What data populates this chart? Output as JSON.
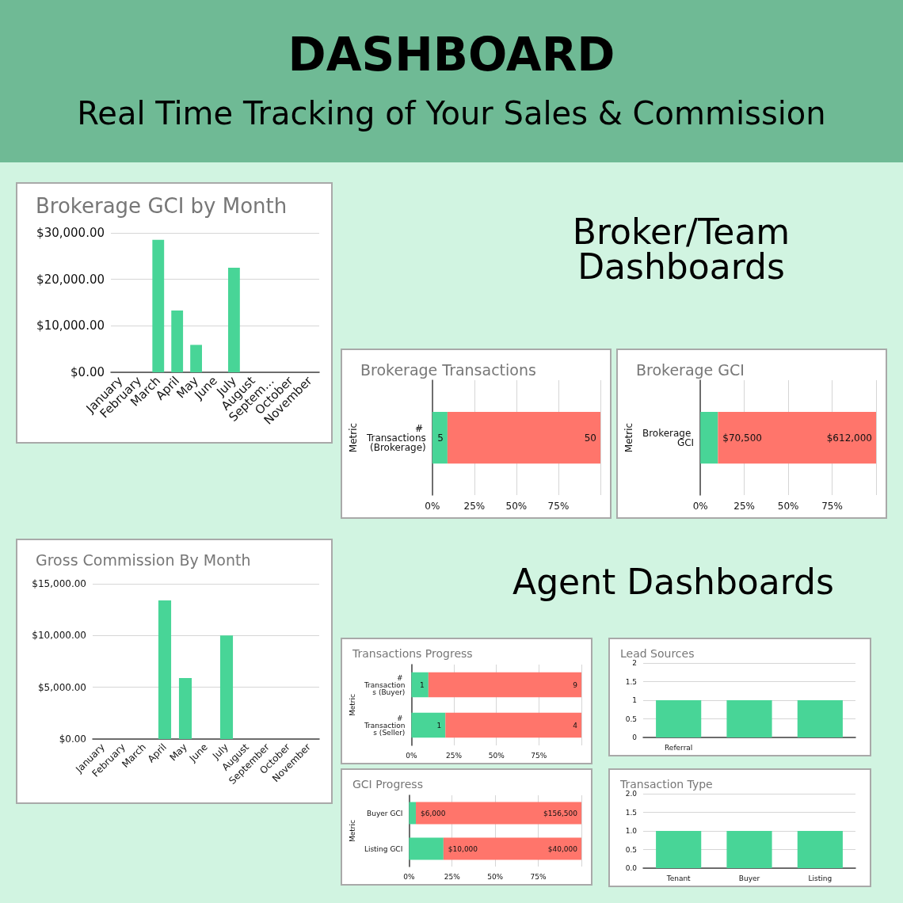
{
  "chart_data": [
    {
      "type": "other",
      "title": "DASHBOARD",
      "subtitle": "Real Time Tracking of Your Sales & Commission"
    },
    {
      "type": "other",
      "title": "Broker/Team Dashboards"
    },
    {
      "type": "bar",
      "title": "Brokerage GCI by Month",
      "categories": [
        "January",
        "February",
        "March",
        "April",
        "May",
        "June",
        "July",
        "August",
        "Septem…",
        "October",
        "November"
      ],
      "values": [
        0,
        0,
        28500,
        13300,
        5900,
        0,
        22500,
        0,
        0,
        0,
        0
      ],
      "color": "#48d597",
      "ylim": [
        0,
        30000
      ],
      "yticks": [
        {
          "value": 0,
          "label": "$0.00"
        },
        {
          "value": 10000,
          "label": "$10,000.00"
        },
        {
          "value": 20000,
          "label": "$20,000.00"
        },
        {
          "value": 30000,
          "label": "$30,000.00"
        }
      ],
      "grid": "y"
    },
    {
      "type": "bar",
      "title": "Brokerage Transactions",
      "orientation": "horizontal",
      "stacked": true,
      "ylabel": "Metric",
      "categories": [
        "# Transactions (Brokerage)"
      ],
      "series": [
        {
          "color": "#48d597",
          "values": [
            9
          ]
        },
        {
          "color": "#ff756b",
          "values": [
            91
          ]
        }
      ],
      "annotations": [
        {
          "text": "5",
          "x": 9,
          "y": "# Transactions (Brokerage)"
        },
        {
          "text": "50",
          "x": 100,
          "y": "# Transactions (Brokerage)"
        }
      ],
      "xlim": [
        0,
        100
      ],
      "xticks": [
        {
          "value": 0,
          "label": "0%"
        },
        {
          "value": 25,
          "label": "25%"
        },
        {
          "value": 50,
          "label": "50%"
        },
        {
          "value": 75,
          "label": "75%"
        },
        {
          "value": 100,
          "label": null
        }
      ],
      "grid": "x"
    },
    {
      "type": "bar",
      "title": "Brokerage GCI",
      "orientation": "horizontal",
      "stacked": true,
      "ylabel": "Metric",
      "categories": [
        "Brokerage GCI"
      ],
      "series": [
        {
          "color": "#48d597",
          "values": [
            10
          ]
        },
        {
          "color": "#ff756b",
          "values": [
            90
          ]
        }
      ],
      "annotations": [
        {
          "text": "$70,500",
          "x": 10,
          "y": "Brokerage GCI"
        },
        {
          "text": "$612,000",
          "x": 100,
          "y": "Brokerage GCI"
        }
      ],
      "xlim": [
        0,
        100
      ],
      "xticks": [
        {
          "value": 0,
          "label": "0%"
        },
        {
          "value": 25,
          "label": "25%"
        },
        {
          "value": 50,
          "label": "50%"
        },
        {
          "value": 75,
          "label": "75%"
        },
        {
          "value": 100,
          "label": null
        }
      ],
      "grid": "x"
    },
    {
      "type": "other",
      "title": "Agent Dashboards"
    },
    {
      "type": "bar",
      "title": "Gross Commission By Month",
      "categories": [
        "January",
        "February",
        "March",
        "April",
        "May",
        "June",
        "July",
        "August",
        "September",
        "October",
        "November"
      ],
      "values": [
        0,
        0,
        0,
        13400,
        5900,
        0,
        10000,
        0,
        0,
        0,
        0
      ],
      "color": "#48d597",
      "ylim": [
        0,
        15000
      ],
      "yticks": [
        {
          "value": 0,
          "label": "$0.00"
        },
        {
          "value": 5000,
          "label": "$5,000.00"
        },
        {
          "value": 10000,
          "label": "$10,000.00"
        },
        {
          "value": 15000,
          "label": "$15,000.00"
        }
      ],
      "grid": "y"
    },
    {
      "type": "bar",
      "title": "Transactions Progress",
      "orientation": "horizontal",
      "stacked": true,
      "ylabel": "Metric",
      "categories": [
        "# Transactions (Buyer)",
        "# Transactions (Seller)"
      ],
      "series": [
        {
          "color": "#48d597",
          "values": [
            10,
            20
          ]
        },
        {
          "color": "#ff756b",
          "values": [
            90,
            80
          ]
        }
      ],
      "annotations": [
        {
          "text": "1",
          "x": 10,
          "y": "# Transactions (Buyer)"
        },
        {
          "text": "9",
          "x": 100,
          "y": "# Transactions (Buyer)"
        },
        {
          "text": "1",
          "x": 20,
          "y": "# Transactions (Seller)"
        },
        {
          "text": "4",
          "x": 100,
          "y": "# Transactions (Seller)"
        }
      ],
      "xlim": [
        0,
        100
      ],
      "xticks": [
        {
          "value": 0,
          "label": "0%"
        },
        {
          "value": 25,
          "label": "25%"
        },
        {
          "value": 50,
          "label": "50%"
        },
        {
          "value": 75,
          "label": "75%"
        },
        {
          "value": 100,
          "label": null
        }
      ],
      "grid": "x"
    },
    {
      "type": "bar",
      "title": "Lead Sources",
      "categories": [
        "Referral",
        null,
        null
      ],
      "values": [
        1,
        1,
        1
      ],
      "color": "#48d597",
      "ylim": [
        0,
        2
      ],
      "yticks": [
        0,
        0.5,
        1,
        1.5,
        2
      ],
      "grid": "y"
    },
    {
      "type": "bar",
      "title": "GCI Progress",
      "orientation": "horizontal",
      "stacked": true,
      "ylabel": "Metric",
      "categories": [
        "Buyer GCI",
        "Listing GCI"
      ],
      "series": [
        {
          "color": "#48d597",
          "values": [
            4,
            20
          ]
        },
        {
          "color": "#ff756b",
          "values": [
            96,
            80
          ]
        }
      ],
      "annotations": [
        {
          "text": "$6,000",
          "x": 4,
          "y": "Buyer GCI"
        },
        {
          "text": "$156,500",
          "x": 100,
          "y": "Buyer GCI"
        },
        {
          "text": "$10,000",
          "x": 20,
          "y": "Listing GCI"
        },
        {
          "text": "$40,000",
          "x": 100,
          "y": "Listing GCI"
        }
      ],
      "xlim": [
        0,
        100
      ],
      "xticks": [
        {
          "value": 0,
          "label": "0%"
        },
        {
          "value": 25,
          "label": "25%"
        },
        {
          "value": 50,
          "label": "50%"
        },
        {
          "value": 75,
          "label": "75%"
        },
        {
          "value": 100,
          "label": null
        }
      ],
      "grid": "x"
    },
    {
      "type": "bar",
      "title": "Transaction Type",
      "categories": [
        "Tenant",
        "Buyer",
        "Listing"
      ],
      "values": [
        1,
        1,
        1
      ],
      "color": "#48d597",
      "ylim": [
        0,
        2
      ],
      "yticks": [
        {
          "value": 0,
          "label": "0.0"
        },
        {
          "value": 0.5,
          "label": "0.5"
        },
        {
          "value": 1,
          "label": "1.0"
        },
        {
          "value": 1.5,
          "label": "1.5"
        },
        {
          "value": 2,
          "label": "2.0"
        }
      ],
      "grid": "y"
    }
  ]
}
